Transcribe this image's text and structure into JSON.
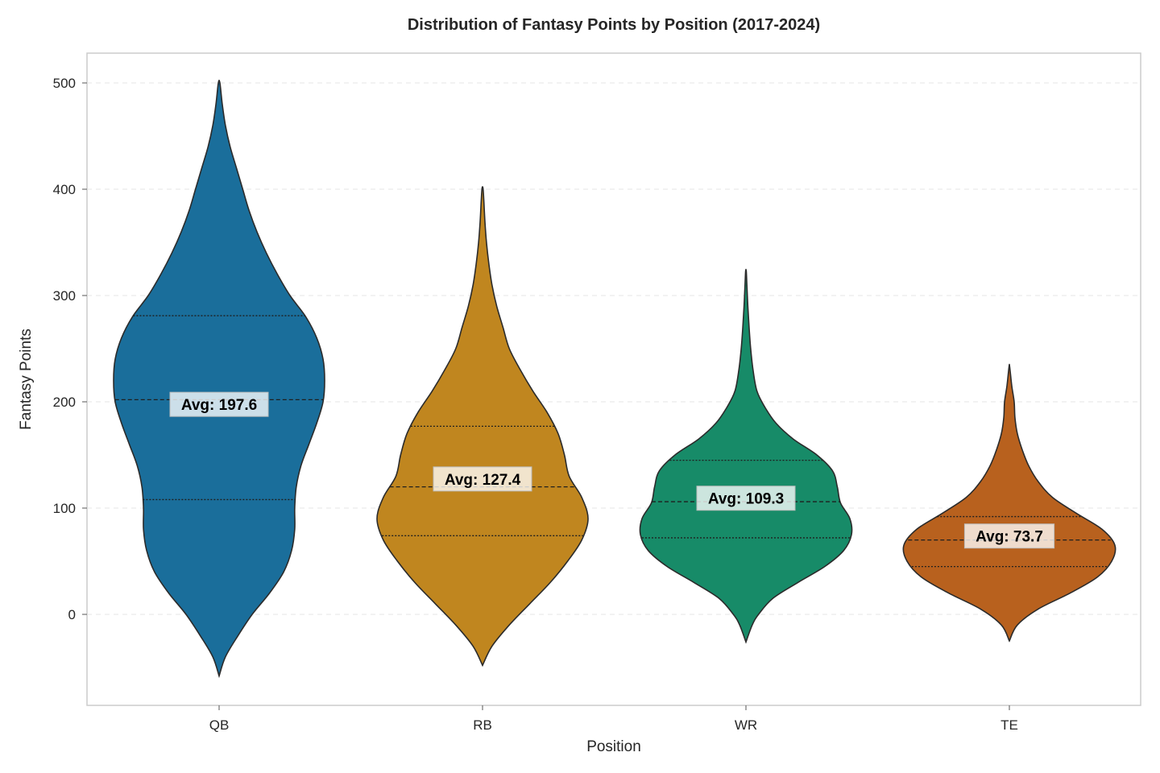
{
  "chart_data": {
    "type": "violin",
    "title": "Distribution of Fantasy Points by Position (2017-2024)",
    "xlabel": "Position",
    "ylabel": "Fantasy Points",
    "ylim": [
      -85,
      525
    ],
    "yticks": [
      0,
      100,
      200,
      300,
      400,
      500
    ],
    "grid": "y-dashed",
    "categories": [
      "QB",
      "RB",
      "WR",
      "TE"
    ],
    "colors": [
      "#1a6e9b",
      "#c0861f",
      "#178b68",
      "#b8611e"
    ],
    "series": [
      {
        "category": "QB",
        "min": -58,
        "max": 500,
        "q1": 108,
        "median": 202,
        "q3": 281,
        "mean": 197.6,
        "avg_label": "Avg: 197.6",
        "profile": [
          [
            -58,
            0
          ],
          [
            -40,
            0.04
          ],
          [
            -20,
            0.12
          ],
          [
            0,
            0.21
          ],
          [
            20,
            0.32
          ],
          [
            40,
            0.41
          ],
          [
            60,
            0.46
          ],
          [
            80,
            0.48
          ],
          [
            100,
            0.48
          ],
          [
            120,
            0.49
          ],
          [
            140,
            0.52
          ],
          [
            160,
            0.57
          ],
          [
            180,
            0.62
          ],
          [
            200,
            0.66
          ],
          [
            220,
            0.67
          ],
          [
            240,
            0.66
          ],
          [
            260,
            0.62
          ],
          [
            280,
            0.55
          ],
          [
            300,
            0.45
          ],
          [
            320,
            0.37
          ],
          [
            340,
            0.3
          ],
          [
            360,
            0.24
          ],
          [
            380,
            0.19
          ],
          [
            400,
            0.15
          ],
          [
            420,
            0.11
          ],
          [
            440,
            0.07
          ],
          [
            460,
            0.04
          ],
          [
            480,
            0.02
          ],
          [
            500,
            0.005
          ]
        ]
      },
      {
        "category": "RB",
        "min": -48,
        "max": 401,
        "q1": 74,
        "median": 120,
        "q3": 177,
        "mean": 127.4,
        "avg_label": "Avg: 127.4",
        "profile": [
          [
            -48,
            0
          ],
          [
            -30,
            0.06
          ],
          [
            -10,
            0.17
          ],
          [
            10,
            0.3
          ],
          [
            30,
            0.43
          ],
          [
            50,
            0.54
          ],
          [
            70,
            0.63
          ],
          [
            90,
            0.67
          ],
          [
            110,
            0.63
          ],
          [
            130,
            0.55
          ],
          [
            150,
            0.52
          ],
          [
            170,
            0.48
          ],
          [
            190,
            0.41
          ],
          [
            210,
            0.32
          ],
          [
            230,
            0.24
          ],
          [
            250,
            0.17
          ],
          [
            270,
            0.13
          ],
          [
            290,
            0.09
          ],
          [
            310,
            0.06
          ],
          [
            330,
            0.04
          ],
          [
            350,
            0.025
          ],
          [
            370,
            0.015
          ],
          [
            390,
            0.008
          ],
          [
            401,
            0.003
          ]
        ]
      },
      {
        "category": "WR",
        "min": -26,
        "max": 323,
        "q1": 72,
        "median": 106,
        "q3": 145,
        "mean": 109.3,
        "avg_label": "Avg: 109.3",
        "profile": [
          [
            -26,
            0
          ],
          [
            -10,
            0.04
          ],
          [
            0,
            0.08
          ],
          [
            15,
            0.17
          ],
          [
            30,
            0.33
          ],
          [
            45,
            0.5
          ],
          [
            60,
            0.62
          ],
          [
            75,
            0.67
          ],
          [
            90,
            0.66
          ],
          [
            105,
            0.6
          ],
          [
            120,
            0.58
          ],
          [
            135,
            0.55
          ],
          [
            150,
            0.45
          ],
          [
            165,
            0.3
          ],
          [
            180,
            0.19
          ],
          [
            195,
            0.12
          ],
          [
            210,
            0.07
          ],
          [
            230,
            0.045
          ],
          [
            250,
            0.03
          ],
          [
            270,
            0.02
          ],
          [
            290,
            0.012
          ],
          [
            310,
            0.006
          ],
          [
            323,
            0.002
          ]
        ]
      },
      {
        "category": "TE",
        "min": -25,
        "max": 233,
        "q1": 45,
        "median": 70,
        "q3": 92,
        "mean": 73.7,
        "avg_label": "Avg: 73.7",
        "profile": [
          [
            -25,
            0
          ],
          [
            -10,
            0.05
          ],
          [
            5,
            0.18
          ],
          [
            20,
            0.38
          ],
          [
            35,
            0.55
          ],
          [
            50,
            0.64
          ],
          [
            65,
            0.66
          ],
          [
            80,
            0.58
          ],
          [
            95,
            0.42
          ],
          [
            110,
            0.27
          ],
          [
            125,
            0.18
          ],
          [
            140,
            0.12
          ],
          [
            155,
            0.08
          ],
          [
            170,
            0.05
          ],
          [
            185,
            0.035
          ],
          [
            200,
            0.03
          ],
          [
            215,
            0.015
          ],
          [
            233,
            0.002
          ]
        ]
      }
    ]
  }
}
